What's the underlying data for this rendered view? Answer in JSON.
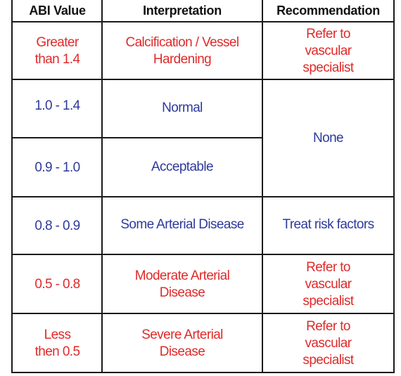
{
  "headers": [
    "ABI Value",
    "Interpretation",
    "Recommendation"
  ],
  "rows": [
    {
      "abi": "Greater than 1.4",
      "interpretation": "Calcification / Vessel Hardening",
      "recommendation": "Refer to vascular specialist",
      "color": "#e02a2a"
    },
    {
      "abi": "1.0 - 1.4",
      "interpretation": "Normal",
      "recommendation": "None",
      "color": "#2d3a9c"
    },
    {
      "abi": "0.9 - 1.0",
      "interpretation": "Acceptable",
      "recommendation": "",
      "color": "#2d3a9c"
    },
    {
      "abi": "0.8 - 0.9",
      "interpretation": "Some Arterial Disease",
      "recommendation": "Treat risk factors",
      "color": "#2d3a9c"
    },
    {
      "abi": "0.5 - 0.8",
      "interpretation": "Moderate Arterial Disease",
      "recommendation": "Refer to vascular specialist",
      "color": "#e02a2a"
    },
    {
      "abi": "Less then 0.5",
      "interpretation": "Severe Arterial Disease",
      "recommendation": "Refer to vascular specialist",
      "color": "#e02a2a"
    }
  ]
}
